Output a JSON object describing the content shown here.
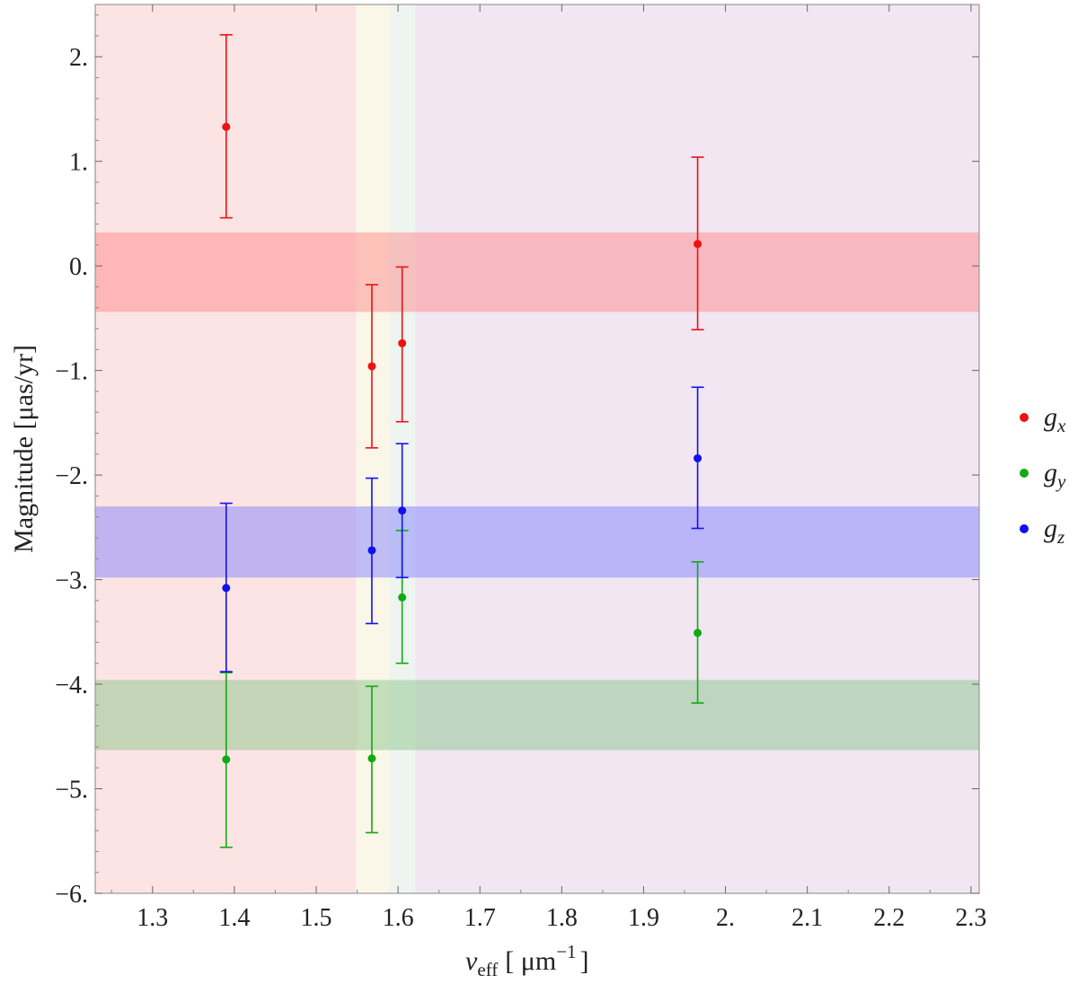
{
  "chart_data": {
    "type": "scatter",
    "error_bars": true,
    "xlabel": {
      "symbol": "ν",
      "sub": "eff",
      "unit_open": "[ μm",
      "unit_exp": "−1",
      "unit_close": "]"
    },
    "ylabel": "Magnitude [μas/yr]",
    "xlim": [
      1.23,
      2.31
    ],
    "ylim": [
      -6.0,
      2.5
    ],
    "xticks": [
      1.3,
      1.4,
      1.5,
      1.6,
      1.7,
      1.8,
      1.9,
      2.0,
      2.1,
      2.2,
      2.3
    ],
    "xtick_labels": [
      "1.3",
      "1.4",
      "1.5",
      "1.6",
      "1.7",
      "1.8",
      "1.9",
      "2.",
      "2.1",
      "2.2",
      "2.3"
    ],
    "yticks": [
      2,
      1,
      0,
      -1,
      -2,
      -3,
      -4,
      -5,
      -6
    ],
    "ytick_labels": [
      "2.",
      "1.",
      "0.",
      "−1.",
      "−2.",
      "−3.",
      "−4.",
      "−5.",
      "−6."
    ],
    "vertical_bands": [
      {
        "x0": 1.23,
        "x1": 1.549,
        "color": "#fce4e4"
      },
      {
        "x0": 1.549,
        "x1": 1.589,
        "color": "#faf6e8"
      },
      {
        "x0": 1.589,
        "x1": 1.621,
        "color": "#eef4f0"
      },
      {
        "x0": 1.621,
        "x1": 2.31,
        "color": "#f1e6f2"
      }
    ],
    "horizontal_bands": [
      {
        "series": "g_x",
        "y0": -0.44,
        "y1": 0.32,
        "color": "#ff8080",
        "opacity": 0.45
      },
      {
        "series": "g_z",
        "y0": -2.98,
        "y1": -2.3,
        "color": "#7878ff",
        "opacity": 0.45
      },
      {
        "series": "g_y",
        "y0": -4.63,
        "y1": -3.96,
        "color": "#80c080",
        "opacity": 0.45
      }
    ],
    "series": [
      {
        "name": "g",
        "sub": "x",
        "color": "#ee1111",
        "points": [
          {
            "x": 1.39,
            "y": 1.33,
            "lo": 0.46,
            "hi": 2.21
          },
          {
            "x": 1.568,
            "y": -0.96,
            "lo": -1.74,
            "hi": -0.18
          },
          {
            "x": 1.605,
            "y": -0.74,
            "lo": -1.49,
            "hi": -0.01
          },
          {
            "x": 1.966,
            "y": 0.21,
            "lo": -0.61,
            "hi": 1.04
          }
        ]
      },
      {
        "name": "g",
        "sub": "y",
        "color": "#11aa11",
        "points": [
          {
            "x": 1.39,
            "y": -4.72,
            "lo": -5.56,
            "hi": -3.89
          },
          {
            "x": 1.568,
            "y": -4.71,
            "lo": -5.42,
            "hi": -4.02
          },
          {
            "x": 1.605,
            "y": -3.17,
            "lo": -3.8,
            "hi": -2.53
          },
          {
            "x": 1.966,
            "y": -3.51,
            "lo": -4.18,
            "hi": -2.83
          }
        ]
      },
      {
        "name": "g",
        "sub": "z",
        "color": "#1111ee",
        "points": [
          {
            "x": 1.39,
            "y": -3.08,
            "lo": -3.88,
            "hi": -2.27
          },
          {
            "x": 1.568,
            "y": -2.72,
            "lo": -3.42,
            "hi": -2.03
          },
          {
            "x": 1.605,
            "y": -2.34,
            "lo": -2.98,
            "hi": -1.7
          },
          {
            "x": 1.966,
            "y": -1.84,
            "lo": -2.51,
            "hi": -1.16
          }
        ]
      }
    ],
    "legend": "right"
  }
}
